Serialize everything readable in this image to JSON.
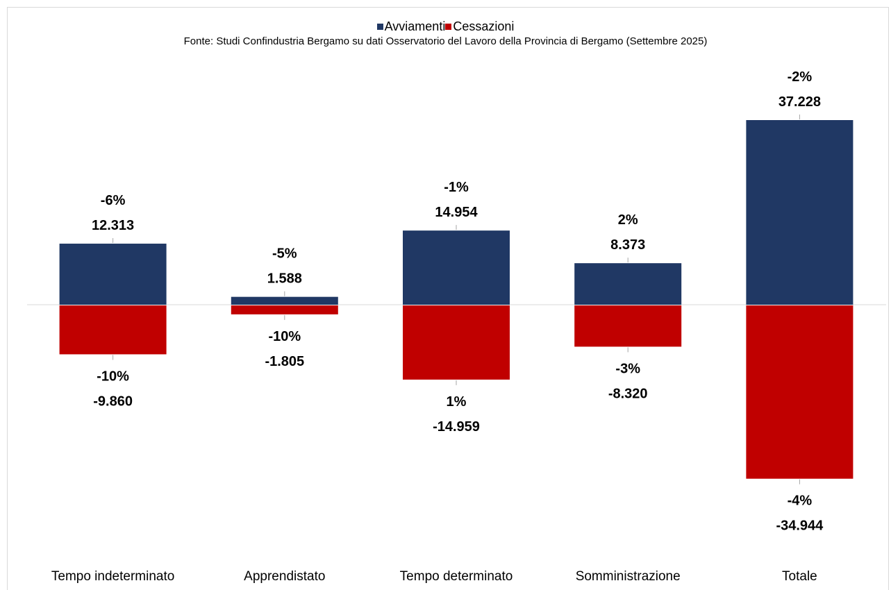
{
  "legend": {
    "items": [
      {
        "name": "Avviamenti",
        "color": "#203864"
      },
      {
        "name": "Cessazioni",
        "color": "#c00000"
      }
    ]
  },
  "source_text": "Fonte: Studi Confindustria Bergamo su dati Osservatorio del Lavoro della Provincia di Bergamo (Settembre 2025)",
  "chart_data": {
    "type": "bar",
    "stacked": true,
    "title": "",
    "xlabel": "",
    "ylabel": "",
    "categories": [
      "Tempo indeterminato",
      "Apprendistato",
      "Tempo determinato",
      "Somministrazione",
      "Totale"
    ],
    "series": [
      {
        "name": "Avviamenti",
        "color": "#203864",
        "values": [
          12313,
          1588,
          14954,
          8373,
          37228
        ],
        "value_labels": [
          "12.313",
          "1.588",
          "14.954",
          "8.373",
          "37.228"
        ],
        "pct_labels": [
          "-6%",
          "-5%",
          "-1%",
          "2%",
          "-2%"
        ]
      },
      {
        "name": "Cessazioni",
        "color": "#c00000",
        "values": [
          -9860,
          -1805,
          -14959,
          -8320,
          -34944
        ],
        "value_labels": [
          "-9.860",
          "-1.805",
          "-14.959",
          "-8.320",
          "-34.944"
        ],
        "pct_labels": [
          "-10%",
          "-10%",
          "1%",
          "-3%",
          "-4%"
        ]
      }
    ],
    "ylim": [
      -36000,
      38000
    ],
    "grid": false,
    "legend_position": "top"
  }
}
